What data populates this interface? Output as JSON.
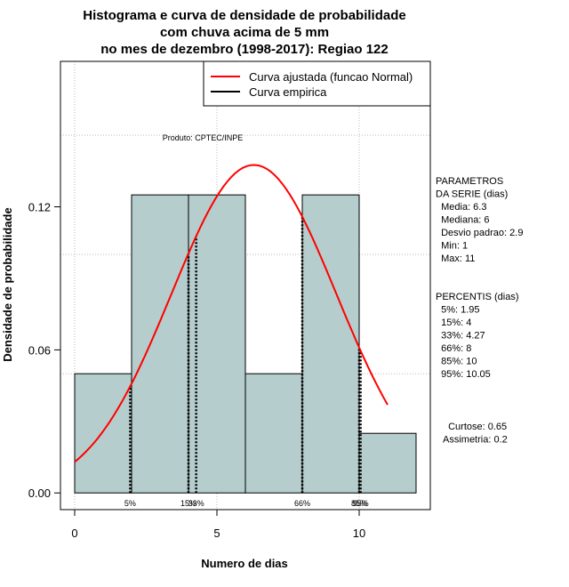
{
  "chart_data": {
    "type": "bar",
    "title_lines": [
      "Histograma e curva de densidade de probabilidade",
      "com chuva acima de 5 mm",
      "no mes de dezembro (1998-2017): Regiao 122"
    ],
    "xlabel": "Numero de dias",
    "ylabel": "Densidade de probabilidade",
    "xlim": [
      -0.5,
      12.5
    ],
    "ylim": [
      -0.007,
      0.181
    ],
    "xticks": [
      0,
      5,
      10
    ],
    "yticks": [
      0.0,
      0.06,
      0.12
    ],
    "ytick_labels": [
      "0.00",
      "0.06",
      "0.12"
    ],
    "grid": true,
    "bars": [
      {
        "x0": 0,
        "x1": 2,
        "value": 0.05
      },
      {
        "x0": 2,
        "x1": 4,
        "value": 0.125
      },
      {
        "x0": 4,
        "x1": 6,
        "value": 0.125
      },
      {
        "x0": 6,
        "x1": 8,
        "value": 0.05
      },
      {
        "x0": 8,
        "x1": 10,
        "value": 0.125
      },
      {
        "x0": 10,
        "x1": 12,
        "value": 0.025
      }
    ],
    "fitted_curve": {
      "name": "Curva ajustada (funcao Normal)",
      "color": "#ff0000",
      "x_range": [
        0,
        11
      ],
      "mean": 6.3,
      "sd": 2.9
    },
    "legend": {
      "position": "top-right",
      "entries": [
        {
          "label": "Curva ajustada (funcao Normal)",
          "color": "#ff0000"
        },
        {
          "label": "Curva empirica",
          "color": "#000000"
        }
      ]
    },
    "product_label": "Produto: CPTEC/INPE",
    "percentile_lines": [
      {
        "label": "5%",
        "x": 1.95
      },
      {
        "label": "15%",
        "x": 4
      },
      {
        "label": "33%",
        "x": 4.27
      },
      {
        "label": "66%",
        "x": 8
      },
      {
        "label": "85%",
        "x": 10
      },
      {
        "label": "95%",
        "x": 10.05
      }
    ],
    "bar_color": "#b5cdcc"
  },
  "side_panel": {
    "params_lines": [
      "PARAMETROS",
      "DA SERIE (dias)",
      "  Media: 6.3",
      "  Mediana: 6",
      "  Desvio padrao: 2.9",
      "  Min: 1",
      "  Max: 11"
    ],
    "percentis_lines": [
      "PERCENTIS (dias)",
      "  5%: 1.95",
      "  15%: 4",
      "  33%: 4.27",
      "  66%: 8",
      "  85%: 10",
      "  95%: 10.05"
    ],
    "stats_lines": [
      "  Curtose: 0.65",
      "Assimetria: 0.2"
    ]
  }
}
